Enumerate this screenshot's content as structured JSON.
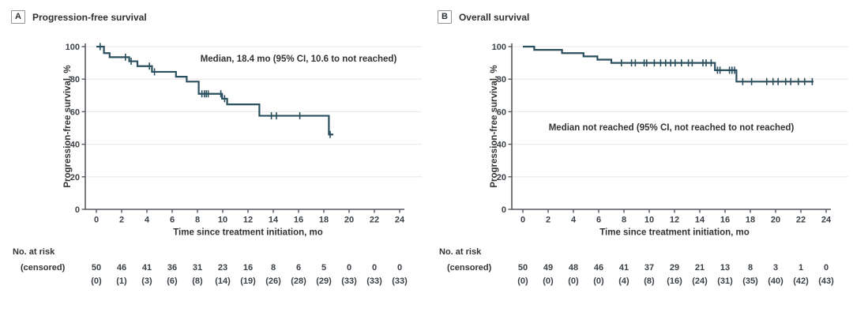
{
  "figure": {
    "panels": [
      {
        "label": "A",
        "title": "Progression-free survival"
      },
      {
        "label": "B",
        "title": "Overall survival"
      }
    ]
  },
  "colors": {
    "curve": "#2a4f5f",
    "title_text": "#2e3133",
    "text": "#333333",
    "tick_text": "#3b4147",
    "axis": "#55595e",
    "gridline": "#ececec"
  },
  "chart_data": [
    {
      "type": "line",
      "subtype": "kaplan-meier-step",
      "panel": "A",
      "title": "Progression-free survival",
      "xlabel": "Time since treatment initiation, mo",
      "ylabel": "Progression-free survival, %",
      "xlim": [
        0,
        24
      ],
      "ylim": [
        0,
        100
      ],
      "xticks": [
        0,
        2,
        4,
        6,
        8,
        10,
        12,
        14,
        16,
        18,
        20,
        22,
        24
      ],
      "yticks": [
        0,
        20,
        40,
        60,
        80,
        100
      ],
      "grid": "horizontal",
      "legend": "none",
      "annotation": "Median, 18.4 mo (95% CI, 10.6 to not reached)",
      "steps": [
        [
          0,
          100
        ],
        [
          0.6,
          96
        ],
        [
          1.05,
          93.5
        ],
        [
          2.6,
          91
        ],
        [
          3.25,
          88
        ],
        [
          4.4,
          84.5
        ],
        [
          6.3,
          81.5
        ],
        [
          7.15,
          78.5
        ],
        [
          8.1,
          71
        ],
        [
          9.95,
          68
        ],
        [
          10.35,
          64.5
        ],
        [
          12.9,
          57.5
        ],
        [
          18.4,
          46
        ]
      ],
      "curve_end_x": 18.75,
      "censor_times": [
        0.3,
        2.3,
        2.75,
        4.2,
        4.6,
        8.35,
        8.55,
        8.7,
        8.85,
        9.85,
        10.15,
        13.85,
        14.25,
        16.1,
        18.5
      ],
      "risk_table": {
        "label_line1": "No. at risk",
        "label_line2": "(censored)",
        "times": [
          0,
          2,
          4,
          6,
          8,
          10,
          12,
          14,
          16,
          18,
          20,
          22,
          24
        ],
        "at_risk": [
          "50",
          "46",
          "41",
          "36",
          "31",
          "23",
          "16",
          "8",
          "6",
          "5",
          "0",
          "0",
          "0"
        ],
        "censored": [
          "(0)",
          "(1)",
          "(3)",
          "(6)",
          "(8)",
          "(14)",
          "(19)",
          "(26)",
          "(28)",
          "(29)",
          "(33)",
          "(33)",
          "(33)"
        ]
      }
    },
    {
      "type": "line",
      "subtype": "kaplan-meier-step",
      "panel": "B",
      "title": "Overall survival",
      "xlabel": "Time since treatment initiation, mo",
      "ylabel": "Progression-free survival, %",
      "xlim": [
        0,
        24
      ],
      "ylim": [
        0,
        100
      ],
      "xticks": [
        0,
        2,
        4,
        6,
        8,
        10,
        12,
        14,
        16,
        18,
        20,
        22,
        24
      ],
      "yticks": [
        0,
        20,
        40,
        60,
        80,
        100
      ],
      "grid": "horizontal",
      "legend": "none",
      "annotation": "Median not reached (95% CI, not reached to not reached)",
      "steps": [
        [
          0,
          100
        ],
        [
          0.9,
          98
        ],
        [
          3.1,
          96
        ],
        [
          4.8,
          94
        ],
        [
          5.9,
          92
        ],
        [
          7.0,
          90
        ],
        [
          15.2,
          85.5
        ],
        [
          16.9,
          78.5
        ]
      ],
      "curve_end_x": 23.0,
      "censor_times": [
        7.8,
        8.6,
        8.9,
        9.6,
        9.8,
        10.4,
        10.9,
        11.3,
        11.7,
        12.05,
        12.55,
        13.1,
        13.4,
        14.25,
        14.5,
        14.9,
        15.4,
        15.6,
        16.35,
        16.55,
        16.75,
        17.4,
        18.1,
        19.3,
        19.8,
        20.2,
        20.8,
        21.2,
        21.8,
        22.3,
        22.9
      ],
      "risk_table": {
        "label_line1": "No. at risk",
        "label_line2": "(censored)",
        "times": [
          0,
          2,
          4,
          6,
          8,
          10,
          12,
          14,
          16,
          18,
          20,
          22,
          24
        ],
        "at_risk": [
          "50",
          "49",
          "48",
          "46",
          "41",
          "37",
          "29",
          "21",
          "13",
          "8",
          "3",
          "1",
          "0"
        ],
        "censored": [
          "(0)",
          "(0)",
          "(0)",
          "(0)",
          "(4)",
          "(8)",
          "(16)",
          "(24)",
          "(31)",
          "(35)",
          "(40)",
          "(42)",
          "(43)"
        ]
      }
    }
  ]
}
